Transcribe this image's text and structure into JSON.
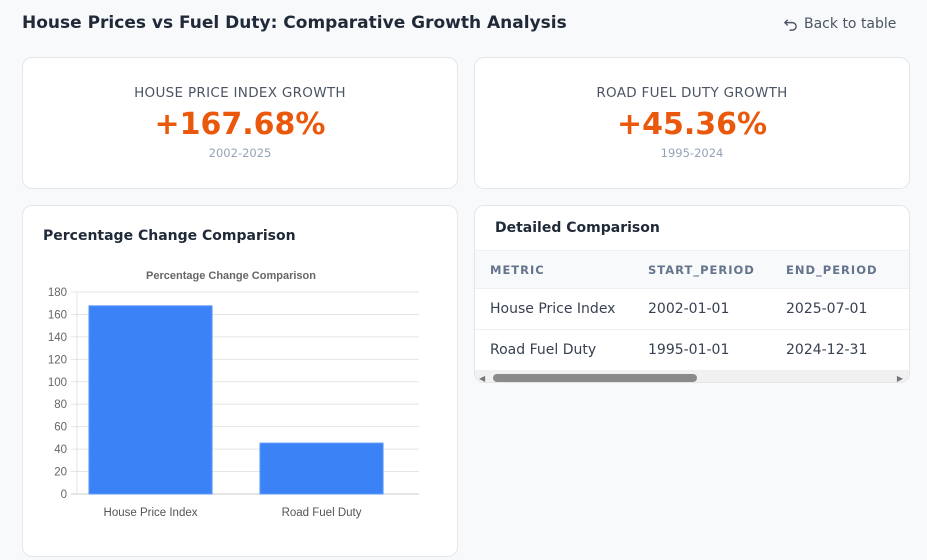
{
  "header": {
    "title": "House Prices vs Fuel Duty: Comparative Growth Analysis",
    "back_label": "Back to table"
  },
  "stats": [
    {
      "label": "HOUSE PRICE INDEX GROWTH",
      "value": "+167.68%",
      "period": "2002-2025"
    },
    {
      "label": "ROAD FUEL DUTY GROWTH",
      "value": "+45.36%",
      "period": "1995-2024"
    }
  ],
  "chart_card": {
    "title": "Percentage Change Comparison"
  },
  "chart_data": {
    "type": "bar",
    "title": "Percentage Change Comparison",
    "categories": [
      "House Price Index",
      "Road Fuel Duty"
    ],
    "values": [
      167.68,
      45.36
    ],
    "ylim": [
      0,
      180
    ],
    "yticks": [
      0,
      20,
      40,
      60,
      80,
      100,
      120,
      140,
      160,
      180
    ],
    "grid": true,
    "color": "#3b82f6"
  },
  "table": {
    "title": "Detailed Comparison",
    "columns": [
      "METRIC",
      "START_PERIOD",
      "END_PERIOD"
    ],
    "rows": [
      [
        "House Price Index",
        "2002-01-01",
        "2025-07-01"
      ],
      [
        "Road Fuel Duty",
        "1995-01-01",
        "2024-12-31"
      ]
    ]
  }
}
